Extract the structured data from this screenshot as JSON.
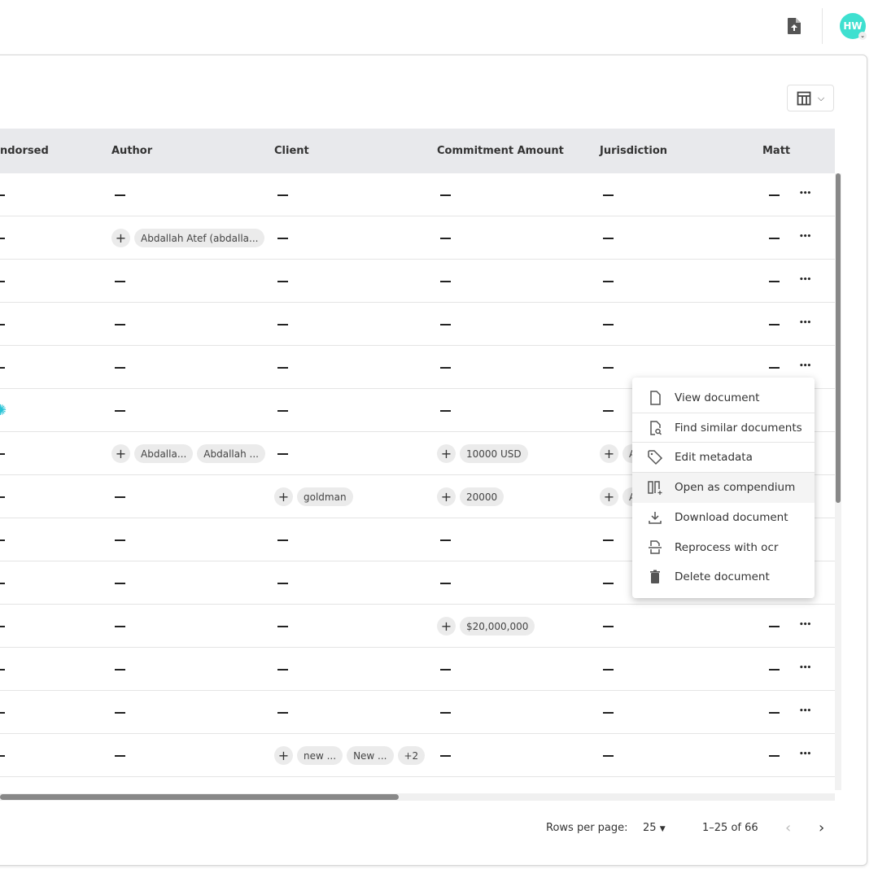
{
  "header": {
    "avatar_initials": "HW",
    "upload_icon": "file-upload-icon"
  },
  "toolbar": {
    "column_toggle_icon": "table-columns-icon"
  },
  "table": {
    "columns": [
      "ndorsed",
      "Author",
      "Client",
      "Commitment Amount",
      "Jurisdiction",
      "Matt"
    ],
    "rows": [
      {
        "endorsed": null,
        "author": [],
        "client": [],
        "commitment": [],
        "jurisdiction": [],
        "matter": null
      },
      {
        "endorsed": null,
        "author": [
          "Abdallah Atef (abdalla..."
        ],
        "client": [],
        "commitment": [],
        "jurisdiction": [],
        "matter": null
      },
      {
        "endorsed": null,
        "author": [],
        "client": [],
        "commitment": [],
        "jurisdiction": [],
        "matter": null
      },
      {
        "endorsed": null,
        "author": [],
        "client": [],
        "commitment": [],
        "jurisdiction": [],
        "matter": null
      },
      {
        "endorsed": null,
        "author": [],
        "client": [],
        "commitment": [],
        "jurisdiction": [],
        "matter": null
      },
      {
        "endorsed": "verified",
        "author": [],
        "client": [],
        "commitment": [],
        "jurisdiction": [],
        "matter": null
      },
      {
        "endorsed": null,
        "author": [
          "Abdalla...",
          "Abdallah ..."
        ],
        "client": [],
        "commitment": [
          "10000 USD"
        ],
        "jurisdiction": [
          "A"
        ],
        "matter": null
      },
      {
        "endorsed": null,
        "author": [],
        "client": [
          "goldman"
        ],
        "commitment": [
          "20000"
        ],
        "jurisdiction": [
          "A"
        ],
        "matter": null
      },
      {
        "endorsed": null,
        "author": [],
        "client": [],
        "commitment": [],
        "jurisdiction": [],
        "matter": null
      },
      {
        "endorsed": null,
        "author": [],
        "client": [],
        "commitment": [],
        "jurisdiction": [],
        "matter": null
      },
      {
        "endorsed": null,
        "author": [],
        "client": [],
        "commitment": [
          "$20,000,000"
        ],
        "jurisdiction": [],
        "matter": null
      },
      {
        "endorsed": null,
        "author": [],
        "client": [],
        "commitment": [],
        "jurisdiction": [],
        "matter": null
      },
      {
        "endorsed": null,
        "author": [],
        "client": [],
        "commitment": [],
        "jurisdiction": [],
        "matter": null
      },
      {
        "endorsed": null,
        "author": [],
        "client": [
          "new ...",
          "New ...",
          "+2"
        ],
        "commitment": [],
        "jurisdiction": [],
        "matter": null
      }
    ]
  },
  "context_menu": {
    "items": [
      {
        "label": "View document",
        "icon": "file-icon"
      },
      {
        "label": "Find similar documents",
        "icon": "file-search-icon"
      },
      {
        "label": "Edit metadata",
        "icon": "tag-icon"
      },
      {
        "label": "Open as compendium",
        "icon": "compendium-icon",
        "highlighted": true
      },
      {
        "label": "Download document",
        "icon": "download-icon"
      },
      {
        "label": "Reprocess with ocr",
        "icon": "ocr-icon"
      },
      {
        "label": "Delete document",
        "icon": "trash-icon"
      }
    ]
  },
  "pagination": {
    "rows_per_page_label": "Rows per page:",
    "rows_per_page": "25",
    "range": "1–25 of 66"
  },
  "colors": {
    "accent": "#3ee0d0",
    "verified": "#27c3d6",
    "header_bg": "#e8e9ec"
  }
}
